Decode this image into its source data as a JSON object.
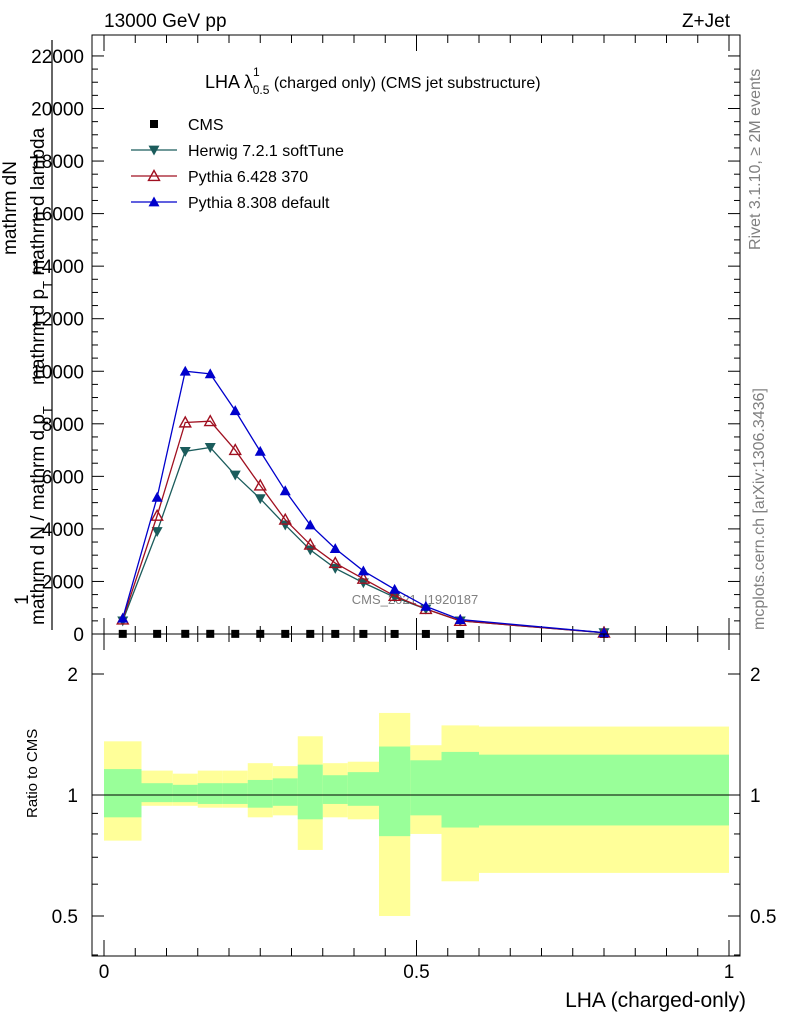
{
  "header": {
    "left": "13000 GeV pp",
    "right": "Z+Jet"
  },
  "side": {
    "rivet": "Rivet 3.1.10, ≥ 2M events",
    "mcplots": "mcplots.cern.ch [arXiv:1306.3436]"
  },
  "main_plot": {
    "title_main": "LHA λ",
    "title_sup": "1",
    "title_sub": "0.5",
    "title_rest": " (charged only) (CMS jet substructure)",
    "ylabel_top1": "mathrm d",
    "ylabel_top2": "N",
    "ylabel_num2": "mathrm d p",
    "ylabel_num2_sub": "T",
    "ylabel_num2_rest": " mathrm d lambda",
    "ylabel_den1": "mathrm d",
    "ylabel_den2": "N / mathrm d p",
    "ylabel_den2_sub": "T",
    "ylabel_frac_one": "1",
    "watermark": "CMS_2021_I1920187",
    "y_tick_labels": [
      "0",
      "2000",
      "4000",
      "6000",
      "8000",
      "10000",
      "12000",
      "14000",
      "16000",
      "18000",
      "20000",
      "22000"
    ]
  },
  "ratio_plot": {
    "ylabel": "Ratio to CMS",
    "left_tick_labels": [
      "0.5",
      "1",
      "2"
    ],
    "right_tick_labels": [
      "0.5",
      "1",
      "2"
    ]
  },
  "x_axis": {
    "label": "LHA (charged-only)",
    "tick_labels": [
      "0",
      "0.5",
      "1"
    ]
  },
  "legend": [
    {
      "label": "CMS",
      "color": "#000000",
      "marker": "square"
    },
    {
      "label": "Herwig 7.2.1 softTune",
      "color": "#1b5c5c",
      "marker": "triangle-down"
    },
    {
      "label": "Pythia 6.428 370",
      "color": "#a01020",
      "marker": "triangle-up-open"
    },
    {
      "label": "Pythia 8.308 default",
      "color": "#0000cc",
      "marker": "triangle-up"
    }
  ],
  "chart_data": [
    {
      "type": "line",
      "title": "LHA λ^1_0.5 (charged only) (CMS jet substructure)",
      "xlabel": "LHA (charged-only)",
      "ylabel": "1/N dN/(dpT dλ)",
      "xlim": [
        0,
        1
      ],
      "ylim": [
        0,
        22400
      ],
      "x": [
        0.03,
        0.085,
        0.13,
        0.17,
        0.21,
        0.25,
        0.29,
        0.33,
        0.37,
        0.415,
        0.465,
        0.515,
        0.57,
        0.8
      ],
      "series": [
        {
          "name": "CMS",
          "values": [
            5,
            5,
            6,
            6,
            5,
            5,
            4,
            4,
            3,
            3,
            2,
            2,
            1,
            0
          ]
        },
        {
          "name": "Herwig 7.2.1 softTune",
          "values": [
            500,
            3900,
            6950,
            7100,
            6050,
            5150,
            4150,
            3200,
            2500,
            1950,
            1400,
            950,
            500,
            50
          ]
        },
        {
          "name": "Pythia 6.428 370",
          "values": [
            550,
            4500,
            8050,
            8100,
            7000,
            5650,
            4350,
            3400,
            2700,
            2100,
            1450,
            950,
            500,
            50
          ]
        },
        {
          "name": "Pythia 8.308 default",
          "values": [
            600,
            5200,
            10000,
            9900,
            8500,
            6950,
            5450,
            4150,
            3250,
            2400,
            1700,
            1050,
            550,
            50
          ]
        }
      ]
    },
    {
      "type": "area",
      "title": "Ratio to CMS",
      "xlabel": "LHA (charged-only)",
      "ylabel": "Ratio to CMS",
      "yscale": "log",
      "ylim": [
        0.4,
        2.4
      ],
      "bin_edges": [
        0,
        0.06,
        0.11,
        0.15,
        0.19,
        0.23,
        0.27,
        0.31,
        0.35,
        0.39,
        0.44,
        0.49,
        0.54,
        0.6,
        1.0
      ],
      "reference": 1,
      "series": [
        {
          "name": "stat uncertainty",
          "low": [
            0.88,
            0.96,
            0.96,
            0.95,
            0.95,
            0.93,
            0.94,
            0.87,
            0.95,
            0.94,
            0.79,
            0.89,
            0.83,
            0.84
          ],
          "high": [
            1.16,
            1.07,
            1.06,
            1.07,
            1.07,
            1.09,
            1.1,
            1.19,
            1.12,
            1.14,
            1.32,
            1.22,
            1.28,
            1.26
          ]
        },
        {
          "name": "stat+syst uncertainty",
          "low": [
            0.77,
            0.94,
            0.94,
            0.93,
            0.93,
            0.88,
            0.89,
            0.73,
            0.88,
            0.87,
            0.5,
            0.8,
            0.61,
            0.64
          ],
          "high": [
            1.36,
            1.15,
            1.13,
            1.15,
            1.15,
            1.2,
            1.18,
            1.4,
            1.2,
            1.21,
            1.6,
            1.33,
            1.49,
            1.48
          ]
        }
      ]
    }
  ]
}
